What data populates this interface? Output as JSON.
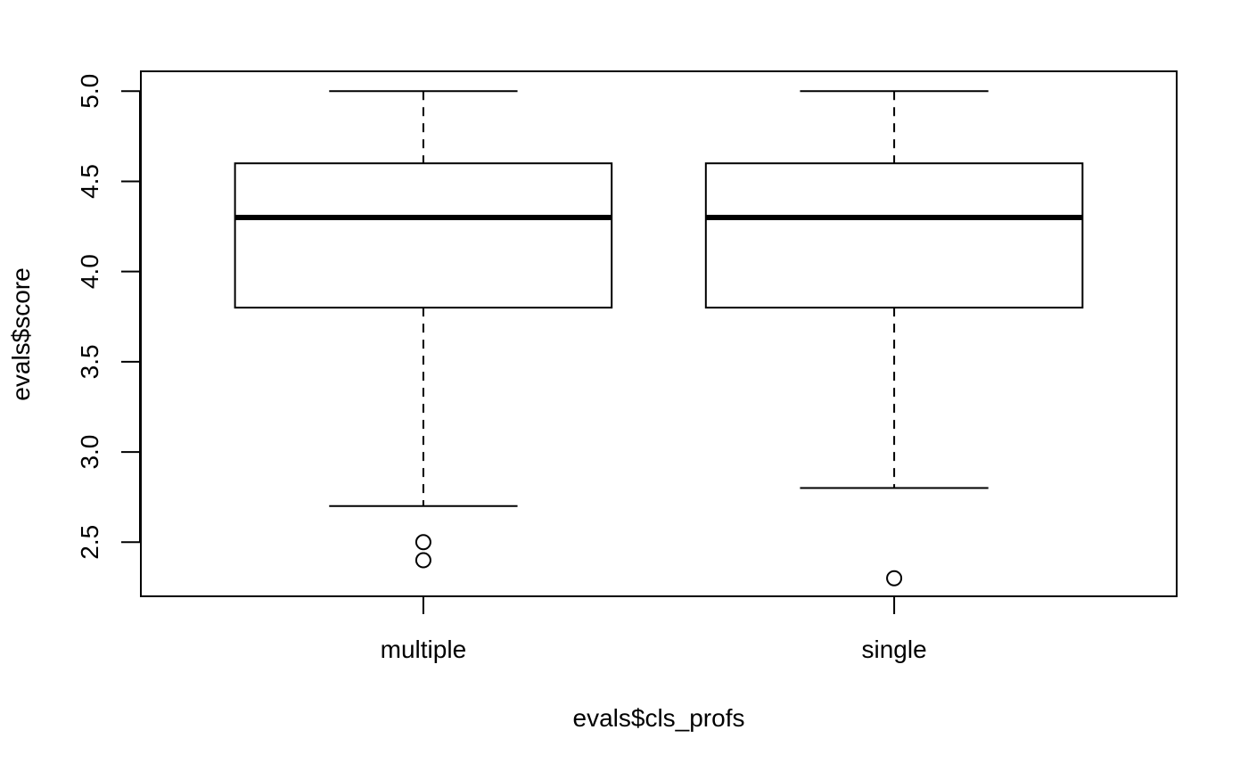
{
  "chart_data": {
    "type": "boxplot",
    "xlabel": "evals$cls_profs",
    "ylabel": "evals$score",
    "categories": [
      "multiple",
      "single"
    ],
    "boxes": [
      {
        "category": "multiple",
        "whisker_low": 2.7,
        "q1": 3.8,
        "median": 4.3,
        "q3": 4.6,
        "whisker_high": 5.0,
        "outliers": [
          2.5,
          2.4
        ]
      },
      {
        "category": "single",
        "whisker_low": 2.8,
        "q1": 3.8,
        "median": 4.3,
        "q3": 4.6,
        "whisker_high": 5.0,
        "outliers": [
          2.3
        ]
      }
    ],
    "yticks": [
      2.5,
      3.0,
      3.5,
      4.0,
      4.5,
      5.0
    ],
    "ytick_labels": [
      "2.5",
      "3.0",
      "3.5",
      "4.0",
      "4.5",
      "5.0"
    ],
    "ylim": [
      2.2,
      5.11
    ],
    "grid": false,
    "legend": "none",
    "colors": {
      "box_fill": "#ffffff",
      "stroke": "#000000"
    }
  }
}
